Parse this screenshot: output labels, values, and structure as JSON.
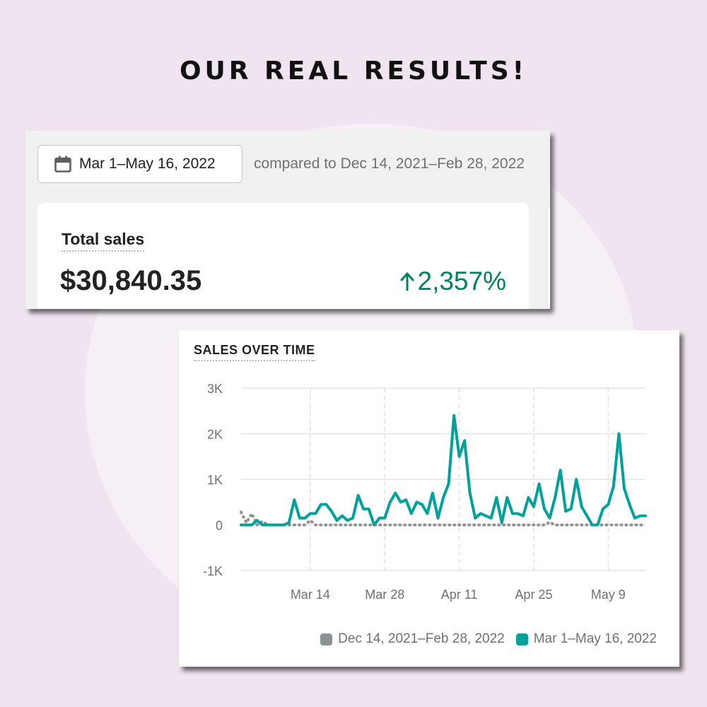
{
  "headline": "OUR REAL RESULTS!",
  "date_picker": {
    "icon": "calendar-icon",
    "label": "Mar 1–May 16, 2022"
  },
  "compare_text": "compared to Dec 14, 2021–Feb 28, 2022",
  "total_sales": {
    "label": "Total sales",
    "value": "$30,840.35",
    "change": "2,357%",
    "change_icon": "arrow-up-icon",
    "change_color": "#008060"
  },
  "chart_data": {
    "type": "line",
    "title": "SALES OVER TIME",
    "xlabel": "",
    "ylabel": "",
    "ylim": [
      -1000,
      3000
    ],
    "yticks": [
      "3K",
      "2K",
      "1K",
      "0",
      "-1K"
    ],
    "xticks": [
      "Mar 14",
      "Mar 28",
      "Apr 11",
      "Apr 25",
      "May 9"
    ],
    "grid": true,
    "legend": "bottom-right",
    "series": [
      {
        "name": "Dec 14, 2021–Feb 28, 2022",
        "color": "#8c9196",
        "style": "dotted",
        "values": [
          280,
          50,
          250,
          0,
          80,
          0,
          0,
          0,
          0,
          0,
          0,
          0,
          0,
          100,
          0,
          0,
          0,
          0,
          0,
          0,
          0,
          0,
          0,
          0,
          0,
          0,
          0,
          0,
          0,
          0,
          0,
          0,
          0,
          0,
          0,
          0,
          0,
          0,
          0,
          0,
          0,
          0,
          0,
          0,
          0,
          0,
          0,
          0,
          0,
          0,
          0,
          0,
          0,
          0,
          0,
          0,
          0,
          0,
          60,
          0,
          0,
          0,
          0,
          0,
          0,
          0,
          0,
          0,
          0,
          0,
          0,
          0,
          0,
          0,
          0,
          0,
          0
        ]
      },
      {
        "name": "Mar 1–May 16, 2022",
        "color": "#00a19a",
        "style": "solid",
        "values": [
          0,
          0,
          0,
          100,
          0,
          0,
          0,
          0,
          0,
          50,
          550,
          150,
          150,
          250,
          250,
          450,
          450,
          300,
          100,
          200,
          100,
          150,
          650,
          350,
          350,
          0,
          150,
          150,
          500,
          700,
          500,
          550,
          250,
          500,
          450,
          250,
          700,
          150,
          600,
          900,
          2400,
          1500,
          1850,
          700,
          150,
          250,
          200,
          150,
          600,
          50,
          600,
          250,
          250,
          200,
          600,
          400,
          900,
          350,
          150,
          600,
          1200,
          300,
          350,
          1000,
          400,
          200,
          0,
          0,
          350,
          450,
          850,
          2000,
          800,
          450,
          150,
          200,
          200
        ]
      }
    ]
  }
}
